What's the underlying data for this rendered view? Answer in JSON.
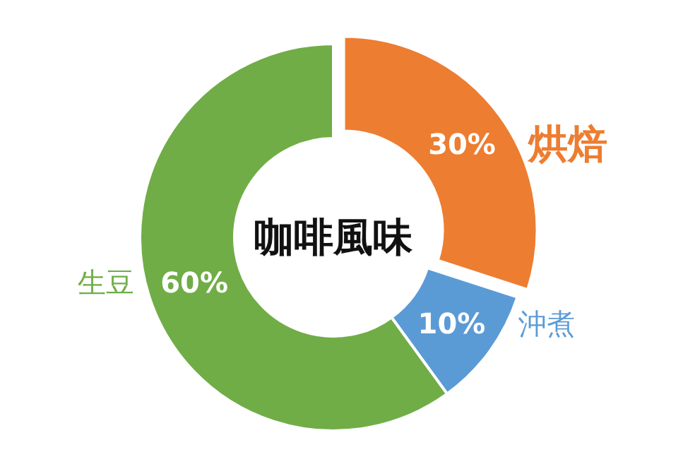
{
  "chart_data": {
    "type": "donut",
    "title": "咖啡風味",
    "categories": [
      "烘焙",
      "沖煮",
      "生豆"
    ],
    "values": [
      30,
      10,
      60
    ],
    "colors": [
      "#ed7d31",
      "#5b9bd5",
      "#70ad47"
    ],
    "value_labels": [
      "30%",
      "10%",
      "60%"
    ]
  }
}
